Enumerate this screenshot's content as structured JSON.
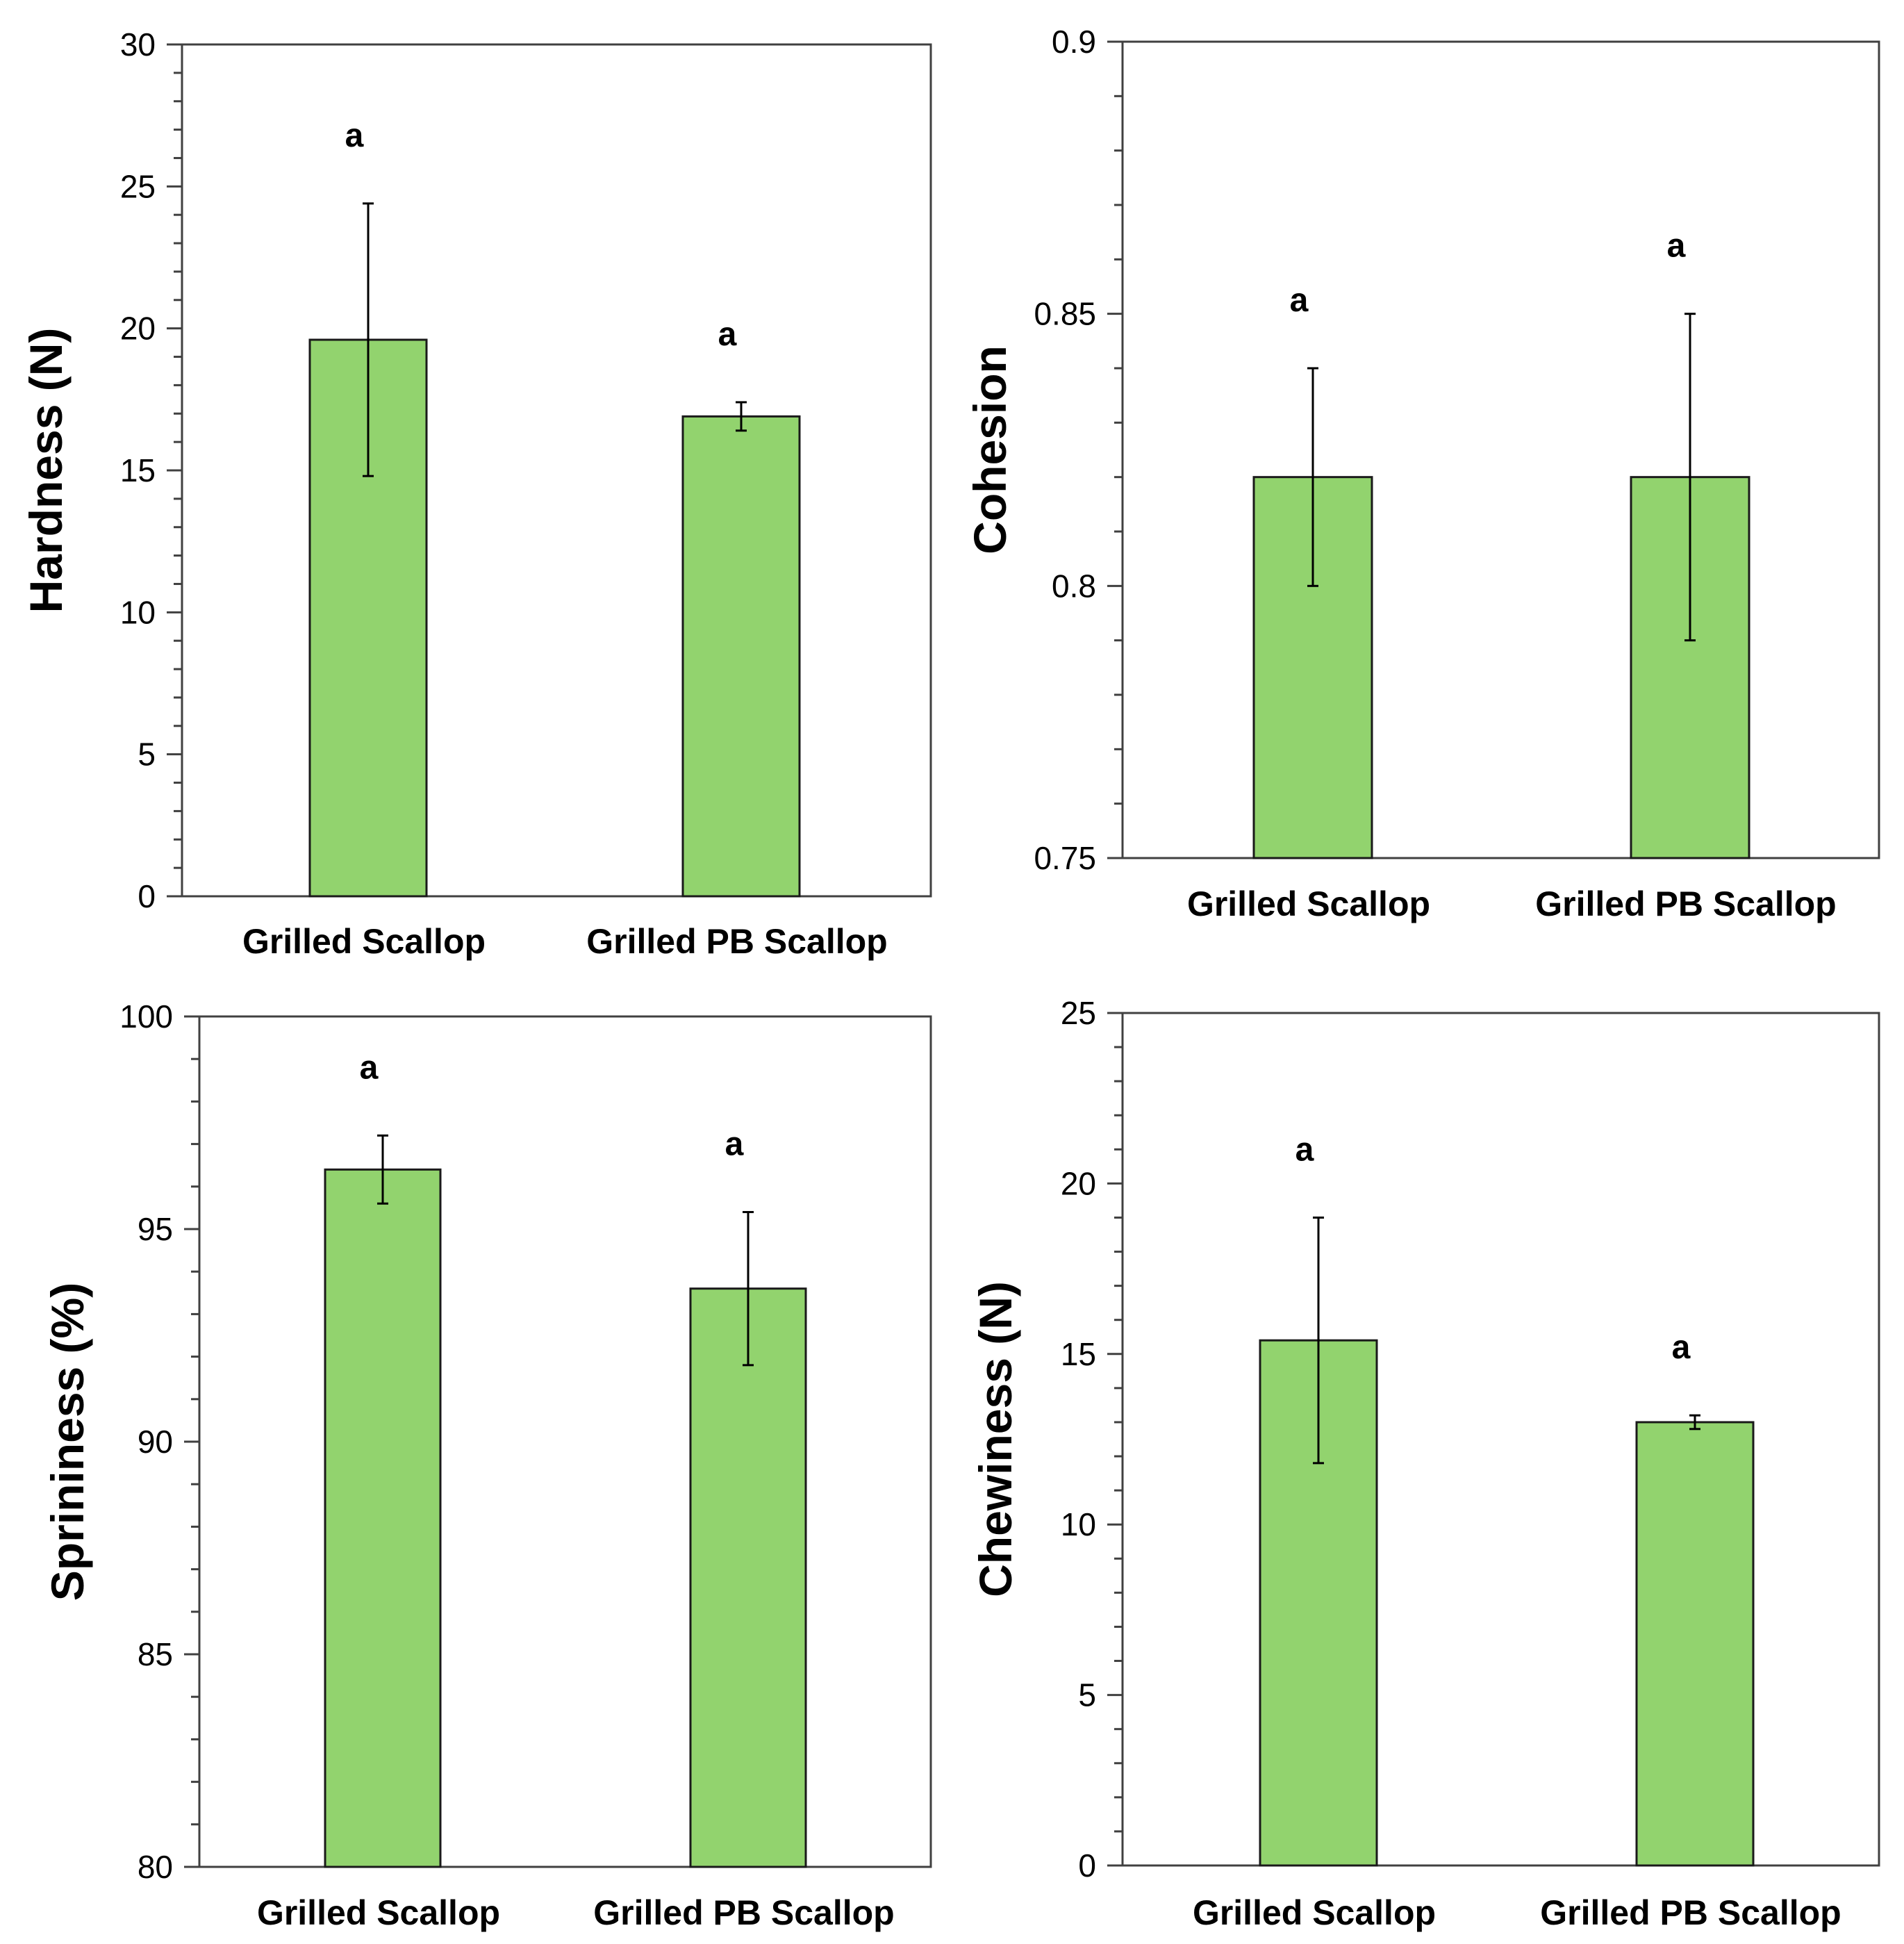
{
  "chart_data": [
    {
      "type": "bar",
      "ylabel": "Hardness (N)",
      "categories": [
        "Grilled Scallop",
        "Grilled PB Scallop"
      ],
      "values": [
        19.6,
        16.9
      ],
      "errors": [
        4.8,
        0.5
      ],
      "significance": [
        "a",
        "a"
      ],
      "ylim": [
        0,
        30
      ],
      "yticks": [
        "0",
        "5",
        "10",
        "15",
        "20",
        "25",
        "30"
      ],
      "bar_color": "#92d36e"
    },
    {
      "type": "bar",
      "ylabel": "Cohesion",
      "categories": [
        "Grilled Scallop",
        "Grilled PB Scallop"
      ],
      "values": [
        0.82,
        0.82
      ],
      "errors": [
        0.02,
        0.03
      ],
      "significance": [
        "a",
        "a"
      ],
      "ylim": [
        0.75,
        0.9
      ],
      "yticks": [
        "0.75",
        "0.8",
        "0.85",
        "0.9"
      ],
      "bar_color": "#92d36e"
    },
    {
      "type": "bar",
      "ylabel": "Sprininess (%)",
      "categories": [
        "Grilled Scallop",
        "Grilled PB Scallop"
      ],
      "values": [
        96.4,
        93.6
      ],
      "errors": [
        0.8,
        1.8
      ],
      "significance": [
        "a",
        "a"
      ],
      "ylim": [
        80,
        100
      ],
      "yticks": [
        "80",
        "85",
        "90",
        "95",
        "100"
      ],
      "bar_color": "#92d36e"
    },
    {
      "type": "bar",
      "ylabel": "Chewiness (N)",
      "categories": [
        "Grilled Scallop",
        "Grilled PB Scallop"
      ],
      "values": [
        15.4,
        13.0
      ],
      "errors": [
        3.6,
        0.2
      ],
      "significance": [
        "a",
        "a"
      ],
      "ylim": [
        0,
        25
      ],
      "yticks": [
        "0",
        "5",
        "10",
        "15",
        "20",
        "25"
      ],
      "bar_color": "#92d36e"
    }
  ]
}
